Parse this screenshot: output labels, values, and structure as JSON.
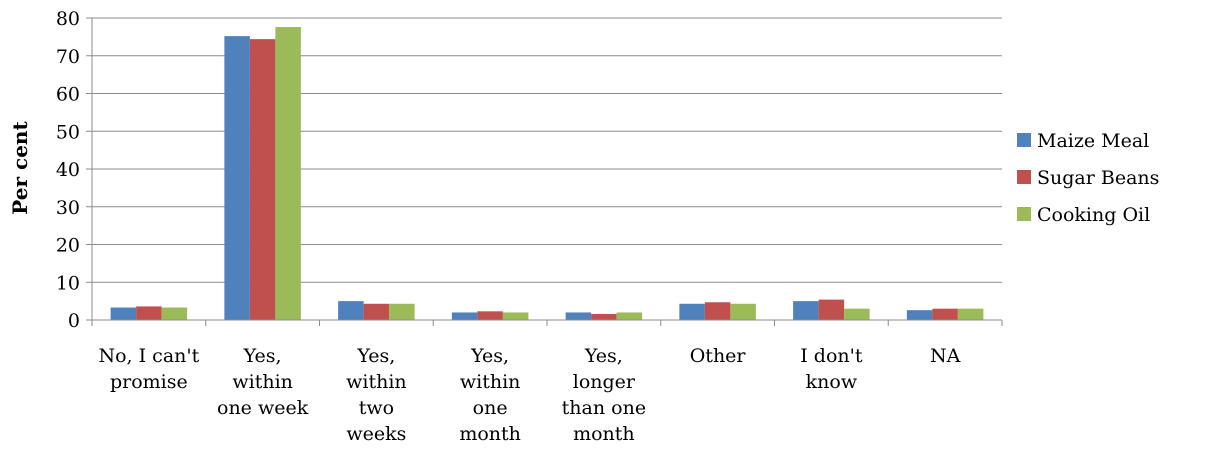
{
  "chart_data": {
    "type": "bar",
    "title": "",
    "xlabel": "",
    "ylabel": "Per cent",
    "ylim": [
      0,
      80
    ],
    "yticks": [
      0,
      10,
      20,
      30,
      40,
      50,
      60,
      70,
      80
    ],
    "grid": true,
    "legend_position": "right",
    "categories": [
      [
        "No, I can't",
        "promise"
      ],
      [
        "Yes,",
        "within",
        "one week"
      ],
      [
        "Yes,",
        "within",
        "two",
        "weeks"
      ],
      [
        "Yes,",
        "within",
        "one",
        "month"
      ],
      [
        "Yes,",
        "longer",
        "than one",
        "month"
      ],
      [
        "Other"
      ],
      [
        "I don't",
        "know"
      ],
      [
        "NA"
      ]
    ],
    "series": [
      {
        "name": "Maize Meal",
        "color": "#4f81bd",
        "values": [
          3.3,
          75.2,
          5.0,
          2.0,
          2.0,
          4.3,
          5.0,
          2.6
        ]
      },
      {
        "name": "Sugar Beans",
        "color": "#c0504d",
        "values": [
          3.6,
          74.4,
          4.3,
          2.3,
          1.6,
          4.7,
          5.4,
          3.0
        ]
      },
      {
        "name": "Cooking Oil",
        "color": "#9bbb59",
        "values": [
          3.3,
          77.6,
          4.3,
          2.0,
          2.0,
          4.3,
          3.0,
          3.0
        ]
      }
    ]
  }
}
